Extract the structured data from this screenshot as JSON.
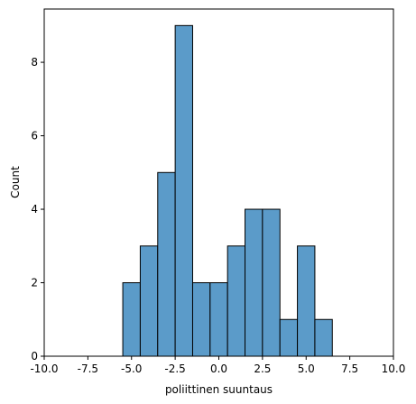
{
  "chart_data": {
    "type": "bar",
    "kind": "histogram",
    "xlabel": "poliittinen suuntaus",
    "ylabel": "Count",
    "xlim": [
      -10,
      10
    ],
    "ylim": [
      0,
      9.45
    ],
    "bin_width": 1,
    "bins": [
      {
        "x0": -5.5,
        "x1": -4.5,
        "count": 2
      },
      {
        "x0": -4.5,
        "x1": -3.5,
        "count": 3
      },
      {
        "x0": -3.5,
        "x1": -2.5,
        "count": 5
      },
      {
        "x0": -2.5,
        "x1": -1.5,
        "count": 9
      },
      {
        "x0": -1.5,
        "x1": -0.5,
        "count": 2
      },
      {
        "x0": -0.5,
        "x1": 0.5,
        "count": 2
      },
      {
        "x0": 0.5,
        "x1": 1.5,
        "count": 3
      },
      {
        "x0": 1.5,
        "x1": 2.5,
        "count": 4
      },
      {
        "x0": 2.5,
        "x1": 3.5,
        "count": 4
      },
      {
        "x0": 3.5,
        "x1": 4.5,
        "count": 1
      },
      {
        "x0": 4.5,
        "x1": 5.5,
        "count": 3
      },
      {
        "x0": 5.5,
        "x1": 6.5,
        "count": 1
      }
    ],
    "xticks": [
      "-10.0",
      "-7.5",
      "-5.0",
      "-2.5",
      "0.0",
      "2.5",
      "5.0",
      "7.5",
      "10.0"
    ],
    "xtick_values": [
      -10,
      -7.5,
      -5,
      -2.5,
      0,
      2.5,
      5,
      7.5,
      10
    ],
    "yticks": [
      "0",
      "2",
      "4",
      "6",
      "8"
    ],
    "ytick_values": [
      0,
      2,
      4,
      6,
      8
    ],
    "bar_color": "#5b9bc9",
    "edge_color": "#000000",
    "grid": false,
    "legend": "none"
  }
}
